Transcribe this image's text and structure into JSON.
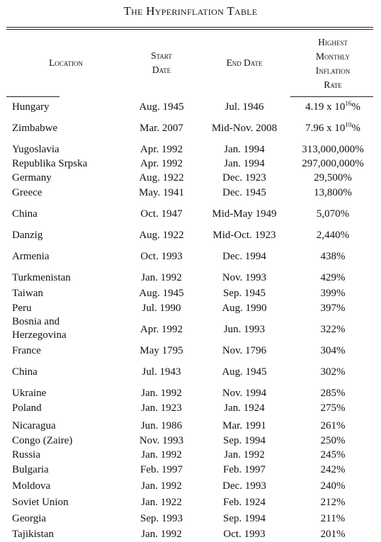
{
  "title": "The Hyperinflation Table",
  "headers": {
    "location": "Location",
    "start": "Start\nDate",
    "end": "End Date",
    "rate": "Highest\nMonthly\nInflation\nRate"
  },
  "rows": [
    {
      "location": "Hungary",
      "start": "Aug. 1945",
      "end": "Jul. 1946",
      "rate_base": "4.19 x 10",
      "rate_exp": "16",
      "rate_suffix": "%"
    },
    {
      "location": "Zimbabwe",
      "start": "Mar. 2007",
      "end": "Mid-Nov. 2008",
      "rate_base": "7.96 x 10",
      "rate_exp": "10",
      "rate_suffix": "%"
    },
    {
      "location": "Yugoslavia",
      "start": "Apr. 1992",
      "end": "Jan. 1994",
      "rate": "313,000,000%"
    },
    {
      "location": "Republika Srpska",
      "start": "Apr. 1992",
      "end": "Jan. 1994",
      "rate": "297,000,000%"
    },
    {
      "location": "Germany",
      "start": "Aug. 1922",
      "end": "Dec. 1923",
      "rate": "29,500%"
    },
    {
      "location": "Greece",
      "start": "May. 1941",
      "end": "Dec. 1945",
      "rate": "13,800%"
    },
    {
      "location": "China",
      "start": "Oct. 1947",
      "end": "Mid-May 1949",
      "rate": "5,070%"
    },
    {
      "location": "Danzig",
      "start": "Aug. 1922",
      "end": "Mid-Oct. 1923",
      "rate": "2,440%"
    },
    {
      "location": "Armenia",
      "start": "Oct. 1993",
      "end": "Dec. 1994",
      "rate": "438%"
    },
    {
      "location": "Turkmenistan",
      "start": "Jan. 1992",
      "end": "Nov. 1993",
      "rate": "429%"
    },
    {
      "location": "Taiwan",
      "start": "Aug. 1945",
      "end": "Sep. 1945",
      "rate": "399%"
    },
    {
      "location": "Peru",
      "start": "Jul. 1990",
      "end": "Aug. 1990",
      "rate": "397%"
    },
    {
      "location": "Bosnia and\nHerzegovina",
      "start": "Apr. 1992",
      "end": "Jun. 1993",
      "rate": "322%"
    },
    {
      "location": "France",
      "start": "May 1795",
      "end": "Nov. 1796",
      "rate": "304%"
    },
    {
      "location": "China",
      "start": "Jul. 1943",
      "end": "Aug. 1945",
      "rate": "302%"
    },
    {
      "location": "Ukraine",
      "start": "Jan. 1992",
      "end": "Nov. 1994",
      "rate": "285%"
    },
    {
      "location": "Poland",
      "start": "Jan. 1923",
      "end": "Jan. 1924",
      "rate": "275%"
    },
    {
      "location": "Nicaragua",
      "start": "Jun. 1986",
      "end": "Mar. 1991",
      "rate": "261%"
    },
    {
      "location": "Congo (Zaire)",
      "start": "Nov. 1993",
      "end": "Sep. 1994",
      "rate": "250%"
    },
    {
      "location": "Russia",
      "start": "Jan. 1992",
      "end": "Jan. 1992",
      "rate": "245%"
    },
    {
      "location": "Bulgaria",
      "start": "Feb. 1997",
      "end": "Feb. 1997",
      "rate": "242%"
    },
    {
      "location": "Moldova",
      "start": "Jan. 1992",
      "end": "Dec. 1993",
      "rate": "240%"
    },
    {
      "location": "Soviet Union",
      "start": "Jan. 1922",
      "end": "Feb. 1924",
      "rate": "212%"
    },
    {
      "location": "Georgia",
      "start": "Sep. 1993",
      "end": "Sep. 1994",
      "rate": "211%"
    },
    {
      "location": "Tajikistan",
      "start": "Jan. 1992",
      "end": "Oct. 1993",
      "rate": "201%"
    }
  ]
}
